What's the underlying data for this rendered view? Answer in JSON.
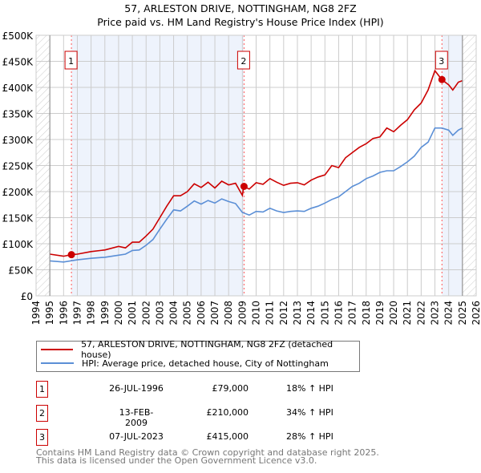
{
  "chart_data": {
    "type": "line",
    "title": "57, ARLESTON DRIVE, NOTTINGHAM, NG8 2FZ",
    "subtitle": "Price paid vs. HM Land Registry's House Price Index (HPI)",
    "xlim": [
      1994,
      2026
    ],
    "ylim": [
      0,
      500000
    ],
    "yticks": [
      {
        "v": 0,
        "label": "£0"
      },
      {
        "v": 50000,
        "label": "£50K"
      },
      {
        "v": 100000,
        "label": "£100K"
      },
      {
        "v": 150000,
        "label": "£150K"
      },
      {
        "v": 200000,
        "label": "£200K"
      },
      {
        "v": 250000,
        "label": "£250K"
      },
      {
        "v": 300000,
        "label": "£300K"
      },
      {
        "v": 350000,
        "label": "£350K"
      },
      {
        "v": 400000,
        "label": "£400K"
      },
      {
        "v": 450000,
        "label": "£450K"
      },
      {
        "v": 500000,
        "label": "£500K"
      }
    ],
    "xticks": [
      "1994",
      "1995",
      "1996",
      "1997",
      "1998",
      "1999",
      "2000",
      "2001",
      "2002",
      "2003",
      "2004",
      "2005",
      "2006",
      "2007",
      "2008",
      "2009",
      "2010",
      "2011",
      "2012",
      "2013",
      "2014",
      "2015",
      "2016",
      "2017",
      "2018",
      "2019",
      "2020",
      "2021",
      "2022",
      "2023",
      "2024",
      "2025",
      "2026"
    ],
    "grid": true,
    "data_range": [
      1995,
      2025
    ],
    "series": [
      {
        "name": "57, ARLESTON DRIVE, NOTTINGHAM, NG8 2FZ (detached house)",
        "color": "#cc0000",
        "x": [
          1995,
          1996,
          1996.6,
          1997,
          1998,
          1999,
          2000,
          2000.5,
          2001,
          2001.5,
          2002,
          2002.5,
          2003,
          2003.5,
          2004,
          2004.5,
          2005,
          2005.5,
          2006,
          2006.5,
          2007,
          2007.5,
          2008,
          2008.5,
          2009,
          2009.1,
          2009.5,
          2010,
          2010.5,
          2011,
          2011.5,
          2012,
          2012.5,
          2013,
          2013.5,
          2014,
          2014.5,
          2015,
          2015.5,
          2016,
          2016.5,
          2017,
          2017.5,
          2018,
          2018.5,
          2019,
          2019.5,
          2020,
          2020.5,
          2021,
          2021.5,
          2022,
          2022.5,
          2023,
          2023.5,
          2024,
          2024.3,
          2024.7,
          2025
        ],
        "y": [
          80000,
          76000,
          79000,
          80000,
          85000,
          88000,
          95000,
          92000,
          103000,
          103000,
          115000,
          128000,
          150000,
          172000,
          192000,
          192000,
          200000,
          215000,
          208000,
          218000,
          207000,
          220000,
          213000,
          216000,
          193000,
          210000,
          205000,
          217000,
          214000,
          225000,
          218000,
          212000,
          216000,
          217000,
          213000,
          222000,
          228000,
          232000,
          250000,
          246000,
          265000,
          275000,
          285000,
          292000,
          302000,
          305000,
          322000,
          315000,
          327000,
          338000,
          357000,
          370000,
          395000,
          432000,
          415000,
          405000,
          395000,
          410000,
          413000
        ]
      },
      {
        "name": "HPI: Average price, detached house, City of Nottingham",
        "color": "#5b8fd6",
        "x": [
          1995,
          1996,
          1997,
          1998,
          1999,
          2000,
          2000.5,
          2001,
          2001.5,
          2002,
          2002.5,
          2003,
          2003.5,
          2004,
          2004.5,
          2005,
          2005.5,
          2006,
          2006.5,
          2007,
          2007.5,
          2008,
          2008.5,
          2009,
          2009.5,
          2010,
          2010.5,
          2011,
          2011.5,
          2012,
          2012.5,
          2013,
          2013.5,
          2014,
          2014.5,
          2015,
          2015.5,
          2016,
          2016.5,
          2017,
          2017.5,
          2018,
          2018.5,
          2019,
          2019.5,
          2020,
          2020.5,
          2021,
          2021.5,
          2022,
          2022.5,
          2023,
          2023.5,
          2024,
          2024.3,
          2024.7,
          2025
        ],
        "y": [
          67000,
          65000,
          69000,
          72000,
          74000,
          78000,
          80000,
          87000,
          88000,
          97000,
          108000,
          128000,
          147000,
          165000,
          163000,
          172000,
          182000,
          176000,
          183000,
          178000,
          186000,
          181000,
          177000,
          160000,
          155000,
          162000,
          161000,
          168000,
          163000,
          160000,
          162000,
          163000,
          162000,
          168000,
          172000,
          178000,
          185000,
          190000,
          200000,
          210000,
          216000,
          225000,
          230000,
          237000,
          240000,
          240000,
          248000,
          257000,
          268000,
          285000,
          295000,
          322000,
          322000,
          318000,
          308000,
          318000,
          322000
        ]
      }
    ],
    "sales": [
      {
        "label": "1",
        "x": 1996.57,
        "y": 79000,
        "date": "26-JUL-1996",
        "price": "£79,000",
        "hpi": "18% ↑ HPI"
      },
      {
        "label": "2",
        "x": 2009.12,
        "y": 210000,
        "date": "13-FEB-2009",
        "price": "£210,000",
        "hpi": "34% ↑ HPI"
      },
      {
        "label": "3",
        "x": 2023.51,
        "y": 415000,
        "date": "07-JUL-2023",
        "price": "£415,000",
        "hpi": "28% ↑ HPI"
      }
    ],
    "shaded_periods": [
      [
        1996.57,
        2009.12
      ],
      [
        2023.51,
        2025
      ]
    ]
  },
  "footer": [
    "Contains HM Land Registry data © Crown copyright and database right 2025.",
    "This data is licensed under the Open Government Licence v3.0."
  ]
}
